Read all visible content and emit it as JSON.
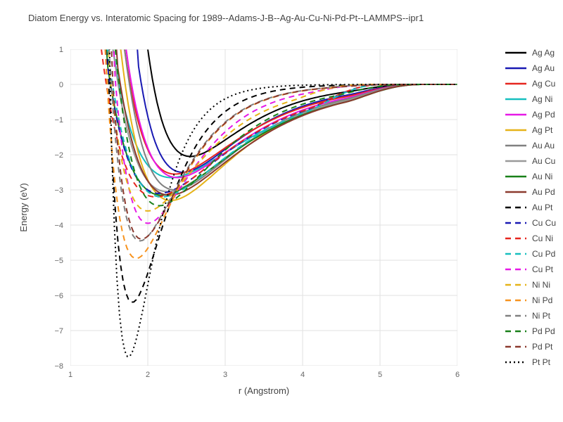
{
  "title": "Diatom Energy vs. Interatomic Spacing for 1989--Adams-J-B--Ag-Au-Cu-Ni-Pd-Pt--LAMMPS--ipr1",
  "xlabel": "r (Angstrom)",
  "ylabel": "Energy (eV)",
  "xlim": [
    1,
    6
  ],
  "ylim": [
    -8,
    1
  ],
  "xticks": [
    1,
    2,
    3,
    4,
    5,
    6
  ],
  "yticks": [
    -8,
    -7,
    -6,
    -5,
    -4,
    -3,
    -2,
    -1,
    0,
    1
  ],
  "background_color": "#ffffff",
  "grid_color": "#e0e0e0",
  "title_fontsize": 13,
  "label_fontsize": 13,
  "tick_fontsize": 11,
  "line_width": 2,
  "legend_position": "right",
  "dash_patterns": {
    "solid": "",
    "dash": "8 6",
    "dot": "2 4"
  },
  "series": [
    {
      "label": "Ag Ag",
      "color": "#000000",
      "dash": "solid",
      "r_min": 2.55,
      "e_min": -2.05,
      "r_cut": 5.55,
      "wall_r": 2.0
    },
    {
      "label": "Ag Au",
      "color": "#1919b3",
      "dash": "solid",
      "r_min": 2.45,
      "e_min": -2.5,
      "r_cut": 5.55,
      "wall_r": 1.85
    },
    {
      "label": "Ag Cu",
      "color": "#e6261f",
      "dash": "solid",
      "r_min": 2.35,
      "e_min": -2.55,
      "r_cut": 5.55,
      "wall_r": 1.7
    },
    {
      "label": "Ag Ni",
      "color": "#17bfbf",
      "dash": "solid",
      "r_min": 2.3,
      "e_min": -2.65,
      "r_cut": 5.55,
      "wall_r": 1.55
    },
    {
      "label": "Ag Pd",
      "color": "#e619e6",
      "dash": "solid",
      "r_min": 2.38,
      "e_min": -2.65,
      "r_cut": 5.55,
      "wall_r": 1.72
    },
    {
      "label": "Ag Pt",
      "color": "#e6b319",
      "dash": "solid",
      "r_min": 2.3,
      "e_min": -3.3,
      "r_cut": 5.55,
      "wall_r": 1.65
    },
    {
      "label": "Au Au",
      "color": "#808080",
      "dash": "solid",
      "r_min": 2.35,
      "e_min": -3.0,
      "r_cut": 5.55,
      "wall_r": 1.7
    },
    {
      "label": "Au Cu",
      "color": "#999999",
      "dash": "solid",
      "r_min": 2.25,
      "e_min": -3.05,
      "r_cut": 5.55,
      "wall_r": 1.55
    },
    {
      "label": "Au Ni",
      "color": "#198019",
      "dash": "solid",
      "r_min": 2.18,
      "e_min": -3.15,
      "r_cut": 5.55,
      "wall_r": 1.45
    },
    {
      "label": "Au Pd",
      "color": "#8b3a2e",
      "dash": "solid",
      "r_min": 2.28,
      "e_min": -3.15,
      "r_cut": 5.55,
      "wall_r": 1.58
    },
    {
      "label": "Au Pt",
      "color": "#000000",
      "dash": "dash",
      "r_min": 2.2,
      "e_min": -3.9,
      "r_cut": 5.55,
      "wall_r": 1.5
    },
    {
      "label": "Cu Cu",
      "color": "#1919b3",
      "dash": "dash",
      "r_min": 2.15,
      "e_min": -3.1,
      "r_cut": 5.05,
      "wall_r": 1.45
    },
    {
      "label": "Cu Ni",
      "color": "#e6261f",
      "dash": "dash",
      "r_min": 2.1,
      "e_min": -3.2,
      "r_cut": 5.05,
      "wall_r": 1.4
    },
    {
      "label": "Cu Pd",
      "color": "#17bfbf",
      "dash": "dash",
      "r_min": 2.18,
      "e_min": -3.2,
      "r_cut": 5.05,
      "wall_r": 1.48
    },
    {
      "label": "Cu Pt",
      "color": "#e619e6",
      "dash": "dash",
      "r_min": 2.1,
      "e_min": -3.95,
      "r_cut": 5.05,
      "wall_r": 1.42
    },
    {
      "label": "Ni Ni",
      "color": "#e6b319",
      "dash": "dash",
      "r_min": 2.05,
      "e_min": -3.3,
      "r_cut": 4.85,
      "wall_r": 1.35
    },
    {
      "label": "Ni Pd",
      "color": "#f7931e",
      "dash": "dash",
      "r_min": 2.12,
      "e_min": -3.3,
      "r_cut": 5.2,
      "wall_r": 1.42
    },
    {
      "label": "Ni Pt",
      "color": "#808080",
      "dash": "dash",
      "r_min": 2.05,
      "e_min": -4.05,
      "r_cut": 5.2,
      "wall_r": 1.38
    },
    {
      "label": "Pd Pd",
      "color": "#198019",
      "dash": "dash",
      "r_min": 2.2,
      "e_min": -3.3,
      "r_cut": 5.4,
      "wall_r": 1.5
    },
    {
      "label": "Pd Pt",
      "color": "#8b3a2e",
      "dash": "dash",
      "r_min": 2.12,
      "e_min": -4.05,
      "r_cut": 5.4,
      "wall_r": 1.45
    },
    {
      "label": "Pt Pt",
      "color": "#000000",
      "dash": "dot",
      "r_min": 2.05,
      "e_min": -4.95,
      "r_cut": 5.55,
      "wall_r": 1.45
    }
  ],
  "extreme_curves": {
    "min_dash_black": {
      "r_min": 1.8,
      "e_min": -6.2
    },
    "min_dot_black": {
      "r_min": 1.75,
      "e_min": -7.75
    },
    "min_solid_orange": {
      "r_min": 1.85,
      "e_min": -4.95
    }
  }
}
